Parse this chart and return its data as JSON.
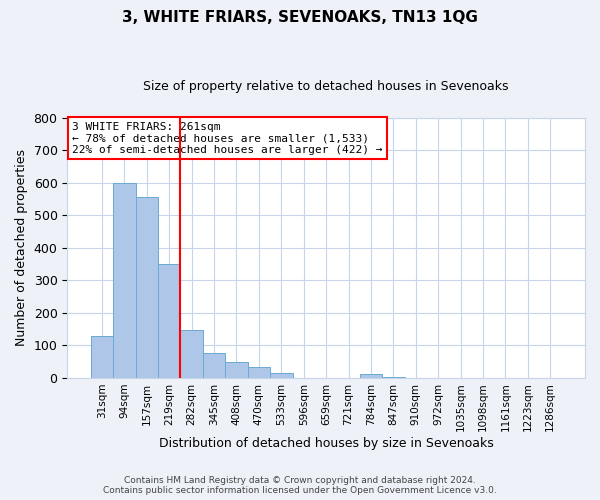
{
  "title": "3, WHITE FRIARS, SEVENOAKS, TN13 1QG",
  "subtitle": "Size of property relative to detached houses in Sevenoaks",
  "xlabel": "Distribution of detached houses by size in Sevenoaks",
  "ylabel": "Number of detached properties",
  "bar_labels": [
    "31sqm",
    "94sqm",
    "157sqm",
    "219sqm",
    "282sqm",
    "345sqm",
    "408sqm",
    "470sqm",
    "533sqm",
    "596sqm",
    "659sqm",
    "721sqm",
    "784sqm",
    "847sqm",
    "910sqm",
    "972sqm",
    "1035sqm",
    "1098sqm",
    "1161sqm",
    "1223sqm",
    "1286sqm"
  ],
  "bar_values": [
    128,
    600,
    555,
    350,
    148,
    75,
    50,
    32,
    15,
    0,
    0,
    0,
    12,
    4,
    0,
    0,
    0,
    0,
    0,
    0,
    0
  ],
  "bar_color": "#aec6e8",
  "bar_edge_color": "#6aaad4",
  "vline_color": "red",
  "annotation_text": "3 WHITE FRIARS: 261sqm\n← 78% of detached houses are smaller (1,533)\n22% of semi-detached houses are larger (422) →",
  "annotation_box_color": "white",
  "annotation_box_edge_color": "red",
  "ylim": [
    0,
    800
  ],
  "yticks": [
    0,
    100,
    200,
    300,
    400,
    500,
    600,
    700,
    800
  ],
  "footer_line1": "Contains HM Land Registry data © Crown copyright and database right 2024.",
  "footer_line2": "Contains public sector information licensed under the Open Government Licence v3.0.",
  "bg_color": "#eef2f8",
  "plot_bg_color": "#ffffff",
  "grid_color": "#c8d4e8"
}
